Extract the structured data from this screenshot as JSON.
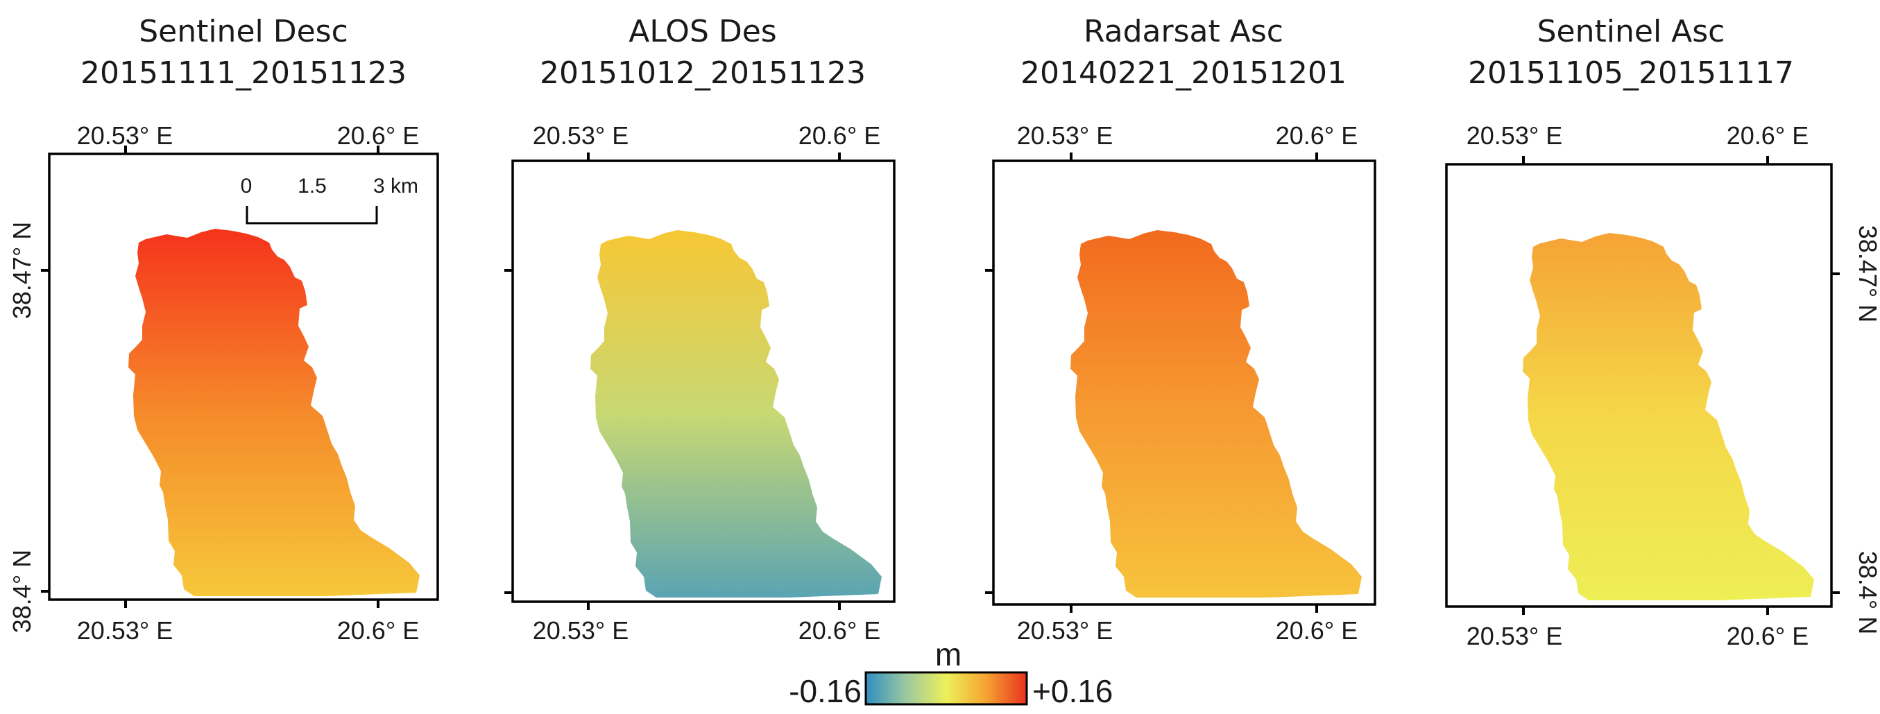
{
  "panels": [
    {
      "id": "p1",
      "title_line1": "Sentinel Desc",
      "title_line2": "20151111_20151123",
      "ramp": {
        "top": "#f5331c",
        "mid": "#f58a2a",
        "bottom": "#f6c83a"
      }
    },
    {
      "id": "p2",
      "title_line1": "ALOS Des",
      "title_line2": "20151012_20151123",
      "ramp": {
        "top": "#f7c734",
        "mid": "#c8d873",
        "bottom": "#5aa4b3"
      }
    },
    {
      "id": "p3",
      "title_line1": "Radarsat Asc",
      "title_line2": "20140221_20151201",
      "ramp": {
        "top": "#f26a1e",
        "mid": "#f69a32",
        "bottom": "#f7c33c"
      }
    },
    {
      "id": "p4",
      "title_line1": "Sentinel Asc",
      "title_line2": "20151105_20151117",
      "ramp": {
        "top": "#f5a335",
        "mid": "#f5d748",
        "bottom": "#eeee55"
      }
    }
  ],
  "axes": {
    "lon_left": "20.53° E",
    "lon_right": "20.6° E",
    "lat_top": "38.47° N",
    "lat_bottom": "38.4° N"
  },
  "scale_bar": {
    "label_0": "0",
    "label_mid": "1.5",
    "label_end": "3 km"
  },
  "colorbar": {
    "unit": "m",
    "min_label": "-0.16",
    "max_label": "+0.16",
    "colors": [
      "#2f8fc0",
      "#9cc8a0",
      "#eef05a",
      "#f5a231",
      "#e8321e"
    ]
  }
}
